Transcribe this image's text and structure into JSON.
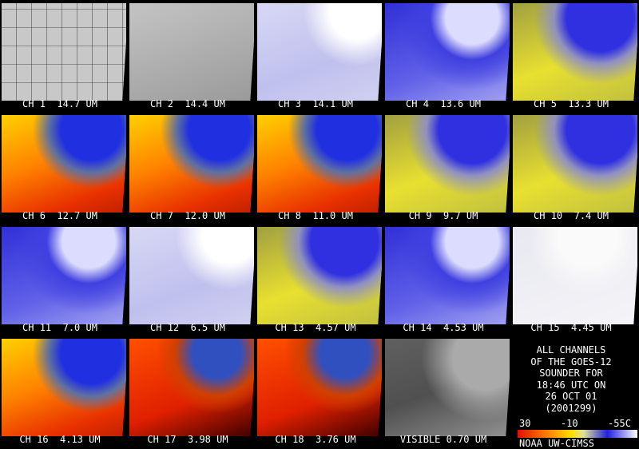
{
  "panels": [
    {
      "label": "CH 1  14.7 UM"
    },
    {
      "label": "CH 2  14.4 UM"
    },
    {
      "label": "CH 3  14.1 UM"
    },
    {
      "label": "CH 4  13.6 UM"
    },
    {
      "label": "CH 5  13.3 UM"
    },
    {
      "label": "CH 6  12.7 UM"
    },
    {
      "label": "CH 7  12.0 UM"
    },
    {
      "label": "CH 8  11.0 UM"
    },
    {
      "label": "CH 9  9.7 UM"
    },
    {
      "label": "CH 10  7.4 UM"
    },
    {
      "label": "CH 11  7.0 UM"
    },
    {
      "label": "CH 12  6.5 UM"
    },
    {
      "label": "CH 13  4.57 UM"
    },
    {
      "label": "CH 14  4.53 UM"
    },
    {
      "label": "CH 15  4.45 UM"
    },
    {
      "label": "CH 16  4.13 UM"
    },
    {
      "label": "CH 17  3.98 UM"
    },
    {
      "label": "CH 18  3.76 UM"
    },
    {
      "label": "VISIBLE 0.70 UM"
    }
  ],
  "info": {
    "lines": [
      "ALL CHANNELS",
      "OF THE GOES-12",
      "SOUNDER FOR",
      "18:46 UTC ON",
      "26 OCT 01",
      "(2001299)"
    ],
    "scale_labels": [
      "30",
      "-10",
      "-55C"
    ],
    "credit": "NOAA UW-CIMSS"
  }
}
